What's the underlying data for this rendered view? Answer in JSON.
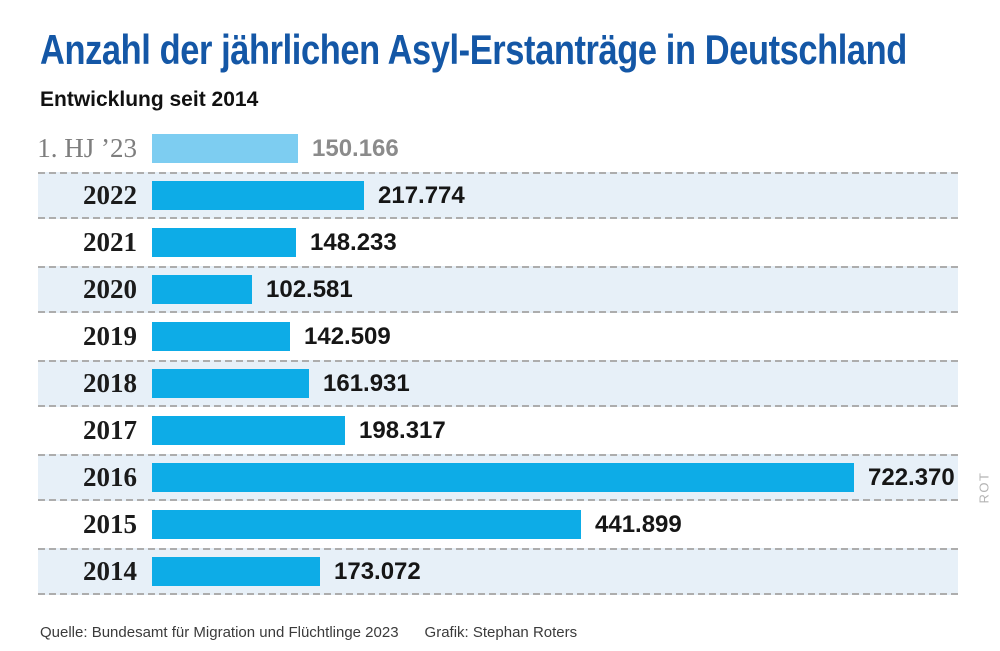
{
  "header": {
    "title": "Anzahl der jährlichen Asyl-Erstanträge in Deutschland",
    "subtitle": "Entwicklung seit 2014"
  },
  "chart_data": {
    "type": "bar",
    "orientation": "horizontal",
    "title": "Anzahl der jährlichen Asyl-Erstanträge in Deutschland",
    "subtitle": "Entwicklung seit 2014",
    "xlabel": "",
    "ylabel": "",
    "grid": "dashed row separators, alternating light-blue row bands",
    "legend": "none",
    "categories": [
      "1. HJ ’23",
      "2022",
      "2021",
      "2020",
      "2019",
      "2018",
      "2017",
      "2016",
      "2015",
      "2014"
    ],
    "values": [
      150166,
      217774,
      148233,
      102581,
      142509,
      161931,
      198317,
      722370,
      441899,
      173072
    ],
    "rows": [
      {
        "label": "1. HJ ’23",
        "value": 150166,
        "display": "150.166",
        "muted": true
      },
      {
        "label": "2022",
        "value": 217774,
        "display": "217.774",
        "muted": false
      },
      {
        "label": "2021",
        "value": 148233,
        "display": "148.233",
        "muted": false
      },
      {
        "label": "2020",
        "value": 102581,
        "display": "102.581",
        "muted": false
      },
      {
        "label": "2019",
        "value": 142509,
        "display": "142.509",
        "muted": false
      },
      {
        "label": "2018",
        "value": 161931,
        "display": "161.931",
        "muted": false
      },
      {
        "label": "2017",
        "value": 198317,
        "display": "198.317",
        "muted": false
      },
      {
        "label": "2016",
        "value": 722370,
        "display": "722.370",
        "muted": false
      },
      {
        "label": "2015",
        "value": 441899,
        "display": "441.899",
        "muted": false
      },
      {
        "label": "2014",
        "value": 173072,
        "display": "173.072",
        "muted": false
      }
    ],
    "colors": {
      "title_blue": "#1457A6",
      "bar_blue": "#0DACE7",
      "bar_light_blue": "#7DCDF1",
      "row_band": "#E7F0F8",
      "dash_gray": "#ADADAD",
      "text_black": "#161616",
      "muted_gray": "#8B8B8B"
    }
  },
  "footer": {
    "source": "Quelle: Bundesamt für Migration und Flüchtlinge 2023",
    "credit": "Grafik: Stephan Roters"
  },
  "watermark": "ROT"
}
